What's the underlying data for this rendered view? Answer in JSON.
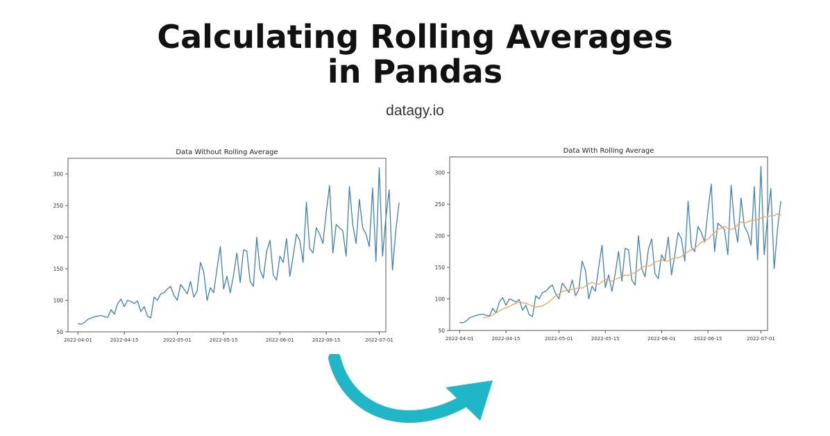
{
  "header": {
    "title_line1": "Calculating Rolling Averages",
    "title_line2": "in Pandas",
    "subtitle": "datagy.io"
  },
  "colors": {
    "raw_line": "#3b7fb8",
    "rolling_line": "#f5a253",
    "arrow": "#1fb6c8",
    "axes": "#555555"
  },
  "icons": {
    "arrow": "curved-arrow-icon"
  },
  "chart_data": [
    {
      "type": "line",
      "title": "Data Without Rolling Average",
      "xlabel": "",
      "ylabel": "",
      "x_start": "2022-04-01",
      "x_end": "2022-06-29",
      "xlim": [
        "2022-03-29",
        "2022-07-03"
      ],
      "ylim": [
        50,
        325
      ],
      "yticks": [
        50,
        100,
        150,
        200,
        250,
        300
      ],
      "xticks": [
        "2022-04-01",
        "2022-04-15",
        "2022-05-01",
        "2022-05-15",
        "2022-06-01",
        "2022-06-15",
        "2022-07-01"
      ],
      "grid": false,
      "series": [
        {
          "values": [
            63,
            62,
            65,
            70,
            72,
            74,
            75,
            76,
            74,
            73,
            85,
            78,
            95,
            102,
            90,
            100,
            98,
            95,
            99,
            82,
            90,
            75,
            72,
            105,
            100,
            110,
            112,
            118,
            122,
            108,
            100,
            125,
            118,
            110,
            130,
            105,
            115,
            160,
            145,
            100,
            120,
            112,
            150,
            185,
            118,
            138,
            112,
            140,
            175,
            128,
            180,
            178,
            130,
            122,
            200,
            148,
            135,
            178,
            195,
            140,
            132,
            170,
            160,
            198,
            138,
            170,
            205,
            195,
            160,
            255,
            182,
            175,
            215,
            205,
            190,
            240,
            282,
            175,
            220,
            215,
            210,
            170,
            280,
            220,
            190,
            260,
            215,
            205,
            185,
            278,
            162,
            310,
            170,
            230,
            275,
            148,
            210,
            255
          ]
        }
      ]
    },
    {
      "type": "line",
      "title": "Data With Rolling Average",
      "xlabel": "",
      "ylabel": "",
      "x_start": "2022-04-01",
      "x_end": "2022-06-29",
      "xlim": [
        "2022-03-29",
        "2022-07-03"
      ],
      "ylim": [
        50,
        325
      ],
      "yticks": [
        50,
        100,
        150,
        200,
        250,
        300
      ],
      "xticks": [
        "2022-04-01",
        "2022-04-15",
        "2022-05-01",
        "2022-05-15",
        "2022-06-01",
        "2022-06-15",
        "2022-07-01"
      ],
      "grid": false,
      "series": [
        {
          "values": [
            63,
            62,
            65,
            70,
            72,
            74,
            75,
            76,
            74,
            73,
            85,
            78,
            95,
            102,
            90,
            100,
            98,
            95,
            99,
            82,
            90,
            75,
            72,
            105,
            100,
            110,
            112,
            118,
            122,
            108,
            100,
            125,
            118,
            110,
            130,
            105,
            115,
            160,
            145,
            100,
            120,
            112,
            150,
            185,
            118,
            138,
            112,
            140,
            175,
            128,
            180,
            178,
            130,
            122,
            200,
            148,
            135,
            178,
            195,
            140,
            132,
            170,
            160,
            198,
            138,
            170,
            205,
            195,
            160,
            255,
            182,
            175,
            215,
            205,
            190,
            240,
            282,
            175,
            220,
            215,
            210,
            170,
            280,
            220,
            190,
            260,
            215,
            205,
            185,
            278,
            162,
            310,
            170,
            230,
            275,
            148,
            210,
            255
          ]
        },
        {
          "start_index": 7,
          "values": [
            70,
            71,
            72,
            75,
            78,
            81,
            84,
            86,
            88,
            91,
            93,
            95,
            94,
            93,
            91,
            89,
            87,
            88,
            89,
            92,
            95,
            100,
            105,
            108,
            112,
            113,
            114,
            115,
            116,
            118,
            117,
            120,
            124,
            126,
            124,
            123,
            127,
            131,
            130,
            128,
            131,
            133,
            135,
            138,
            137,
            140,
            142,
            145,
            150,
            152,
            152,
            154,
            158,
            160,
            162,
            160,
            160,
            163,
            165,
            165,
            167,
            172,
            175,
            178,
            180,
            185,
            190,
            192,
            195,
            200,
            205,
            210,
            212,
            215,
            212,
            210,
            212,
            218,
            222,
            220,
            222,
            224,
            225,
            226,
            228,
            230,
            230,
            232,
            232,
            235,
            233
          ]
        }
      ]
    }
  ]
}
